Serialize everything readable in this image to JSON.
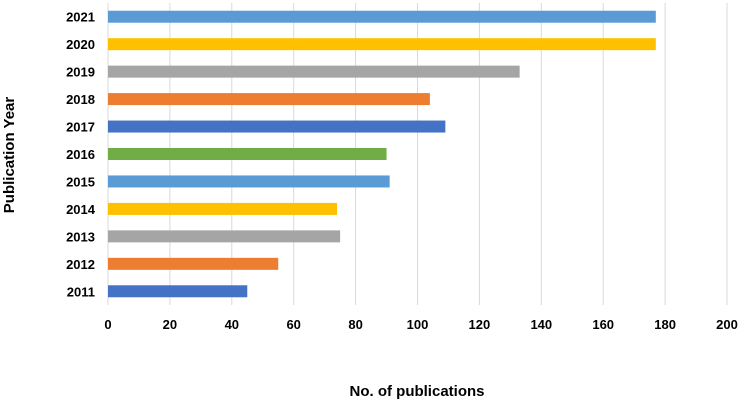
{
  "chart_data": {
    "type": "bar",
    "orientation": "horizontal",
    "categories": [
      "2011",
      "2012",
      "2013",
      "2014",
      "2015",
      "2016",
      "2017",
      "2018",
      "2019",
      "2020",
      "2021"
    ],
    "values": [
      45,
      55,
      75,
      74,
      91,
      90,
      109,
      104,
      133,
      177,
      177
    ],
    "bar_colors": [
      "#4472C4",
      "#ED7D31",
      "#A5A5A5",
      "#FFC000",
      "#5B9BD5",
      "#70AD47",
      "#4472C4",
      "#ED7D31",
      "#A5A5A5",
      "#FFC000",
      "#5B9BD5"
    ],
    "title": "",
    "xlabel": "No. of publications",
    "ylabel": "Publication Year",
    "xlim": [
      0,
      200
    ],
    "xticks": [
      "0",
      "20",
      "40",
      "60",
      "80",
      "100",
      "120",
      "140",
      "160",
      "180",
      "200"
    ],
    "grid": "vertical",
    "gridline_color": "#D9D9D9",
    "legend": "none"
  }
}
